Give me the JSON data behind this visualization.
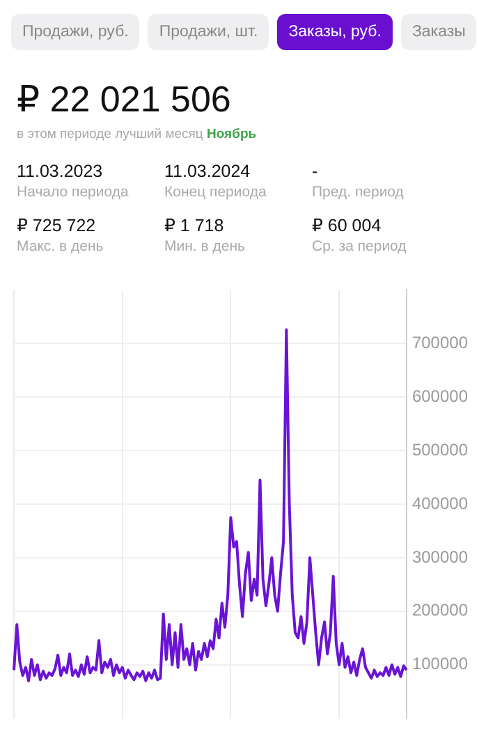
{
  "chart_data": {
    "type": "line",
    "title": "₽ 22 021 506",
    "subtitle": "в этом периоде лучший месяц Ноябрь",
    "annotations": [
      "Продажи, руб.",
      "Продажи, шт.",
      "Заказы, руб.",
      "Заказы",
      "11.03.2023",
      "Начало периода",
      "11.03.2024",
      "Конец периода",
      "-",
      "Пред. период",
      "₽ 725 722",
      "Макс. в день",
      "₽ 1 718",
      "Мин. в день",
      "₽ 60 004",
      "Ср. за период"
    ],
    "categories": [
      null,
      null,
      null,
      null,
      null,
      null,
      null,
      null,
      null,
      null,
      null,
      null,
      null,
      null,
      null,
      null,
      null,
      null,
      null,
      null,
      null,
      null,
      null,
      null,
      null,
      null,
      null,
      null,
      null,
      null,
      null,
      null,
      null,
      null,
      null,
      null,
      null,
      null,
      null,
      null,
      null,
      null,
      null,
      null,
      null,
      null,
      null,
      null,
      null,
      null,
      null,
      null,
      null,
      null,
      null,
      null,
      null,
      null,
      null,
      null,
      null,
      null,
      null,
      null,
      null,
      null,
      null,
      null,
      null,
      null,
      null,
      null,
      null,
      null,
      null,
      null,
      null,
      null,
      null,
      null,
      null,
      null,
      null,
      null,
      null,
      null,
      null,
      null,
      null,
      null,
      null,
      null,
      null,
      null,
      null,
      null,
      null,
      null,
      null,
      null,
      null,
      null,
      null,
      null,
      null,
      null,
      null,
      null,
      null,
      null,
      null,
      null,
      null,
      null,
      null,
      null,
      null,
      null,
      null,
      null,
      null,
      null,
      null,
      null,
      null,
      null,
      null,
      null,
      null,
      null,
      null,
      null,
      null,
      null,
      null
    ],
    "ylim": [
      0,
      800000
    ],
    "yticks": [
      100000,
      200000,
      300000,
      400000,
      500000,
      600000,
      700000
    ],
    "grid": true,
    "tick_labels": "y",
    "legend": false,
    "marker": "none",
    "series": [
      {
        "color": "#6a14d4",
        "values": [
          90000,
          175000,
          105000,
          80000,
          95000,
          70000,
          110000,
          80000,
          100000,
          72000,
          88000,
          75000,
          85000,
          80000,
          92000,
          118000,
          80000,
          95000,
          85000,
          120000,
          80000,
          90000,
          78000,
          100000,
          82000,
          115000,
          85000,
          95000,
          90000,
          145000,
          85000,
          105000,
          95000,
          110000,
          80000,
          100000,
          85000,
          95000,
          75000,
          90000,
          80000,
          72000,
          85000,
          78000,
          88000,
          70000,
          85000,
          75000,
          90000,
          72000,
          75000,
          195000,
          110000,
          175000,
          100000,
          160000,
          95000,
          175000,
          110000,
          130000,
          100000,
          140000,
          90000,
          125000,
          110000,
          140000,
          115000,
          145000,
          130000,
          185000,
          150000,
          215000,
          170000,
          230000,
          375000,
          320000,
          330000,
          250000,
          190000,
          270000,
          310000,
          220000,
          260000,
          230000,
          445000,
          260000,
          210000,
          250000,
          300000,
          230000,
          200000,
          270000,
          330000,
          725722,
          400000,
          230000,
          160000,
          150000,
          190000,
          140000,
          180000,
          300000,
          230000,
          160000,
          100000,
          150000,
          180000,
          120000,
          160000,
          265000,
          140000,
          100000,
          140000,
          95000,
          115000,
          85000,
          105000,
          80000,
          110000,
          130000,
          95000,
          85000,
          75000,
          90000,
          78000,
          85000,
          80000,
          95000,
          80000,
          100000,
          82000,
          95000,
          78000,
          98000,
          90000
        ]
      }
    ]
  }
}
